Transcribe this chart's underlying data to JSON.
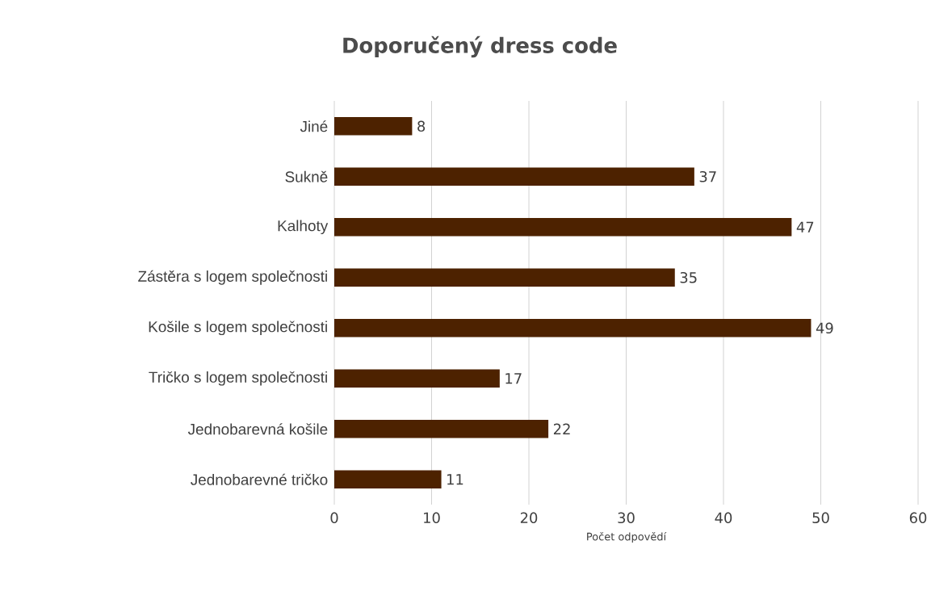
{
  "chart_data": {
    "type": "bar",
    "orientation": "horizontal",
    "title": "Doporučený dress code",
    "xlabel": "Počet odpovědí",
    "categories": [
      "Jiné",
      "Sukně",
      "Kalhoty",
      "Zástěra s logem společnosti",
      "Košile s logem společnosti",
      "Tričko s logem společnosti",
      "Jednobarevná košile",
      "Jednobarevné tričko"
    ],
    "values": [
      8,
      37,
      47,
      35,
      49,
      17,
      22,
      11
    ],
    "color": "#4d2200",
    "xlim": [
      0,
      60
    ],
    "xticks": [
      0,
      10,
      20,
      30,
      40,
      50,
      60
    ],
    "grid": "x",
    "data_labels": true
  }
}
